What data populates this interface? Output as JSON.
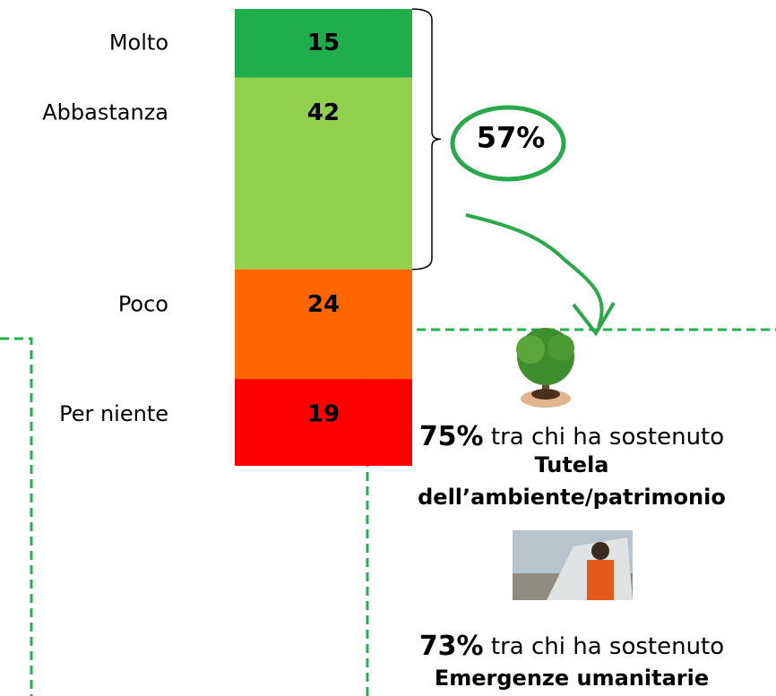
{
  "chart_data": {
    "type": "stacked_bar",
    "categories": [
      "Molto",
      "Abbastanza",
      "Poco",
      "Per niente"
    ],
    "values": [
      15,
      42,
      24,
      19
    ],
    "colors": [
      "#1fae4b",
      "#92d050",
      "#ff6600",
      "#ff0000"
    ],
    "ylim": [
      0,
      100
    ],
    "annotation": {
      "value": 57,
      "label": "57%"
    }
  },
  "callouts": [
    {
      "share": "75%",
      "text": "tra chi ha sostenuto",
      "title_lines": [
        "Tutela",
        "dell’ambiente/patrimonio"
      ]
    },
    {
      "share": "73%",
      "text": "tra chi ha sostenuto",
      "title_lines": [
        "Emergenze umanitarie"
      ]
    }
  ]
}
